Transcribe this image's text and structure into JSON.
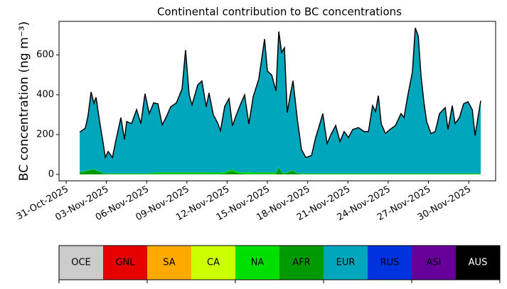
{
  "chart_data": {
    "type": "stacked_area",
    "title": "Continental contribution to BC concentrations",
    "ylabel": "BC concentration (ng m⁻³)",
    "x": [
      1.01,
      1.43,
      1.64,
      1.86,
      2.07,
      2.23,
      2.49,
      2.76,
      2.92,
      3.13,
      3.45,
      3.66,
      4.08,
      4.35,
      4.51,
      4.88,
      5.25,
      5.57,
      5.88,
      6.2,
      6.52,
      6.84,
      7.16,
      7.47,
      7.79,
      8.22,
      8.64,
      8.9,
      9.17,
      9.38,
      9.81,
      10.12,
      10.44,
      10.65,
      10.97,
      11.29,
      11.5,
      11.82,
      12.14,
      12.4,
      12.67,
      12.99,
      13.3,
      13.62,
      13.94,
      14.36,
      14.79,
      15.0,
      15.32,
      15.64,
      15.85,
      16.06,
      16.27,
      16.48,
      16.7,
      16.91,
      17.23,
      17.54,
      17.86,
      18.29,
      18.6,
      18.87,
      19.13,
      19.45,
      19.77,
      20.09,
      20.41,
      20.72,
      21.04,
      21.36,
      21.78,
      22.21,
      22.53,
      22.84,
      23.06,
      23.27,
      23.48,
      23.8,
      24.12,
      24.54,
      24.96,
      25.18,
      25.49,
      25.81,
      26.02,
      26.24,
      26.45,
      26.66,
      26.87,
      27.19,
      27.51,
      27.83,
      28.25,
      28.46,
      28.78,
      28.99,
      29.31,
      29.63,
      29.95,
      30.27,
      30.48,
      30.69,
      30.9
    ],
    "series": [
      {
        "name": "AFR",
        "color": "#009900",
        "values": [
          10,
          15,
          20,
          22,
          25,
          20,
          15,
          5,
          3,
          3,
          3,
          3,
          3,
          3,
          3,
          3,
          3,
          3,
          3,
          3,
          3,
          3,
          3,
          3,
          3,
          3,
          3,
          3,
          3,
          3,
          3,
          3,
          3,
          3,
          3,
          3,
          3,
          5,
          15,
          18,
          10,
          5,
          3,
          3,
          3,
          3,
          3,
          3,
          3,
          3,
          35,
          10,
          3,
          8,
          15,
          18,
          5,
          3,
          3,
          3,
          3,
          3,
          3,
          3,
          3,
          3,
          3,
          3,
          3,
          3,
          3,
          3,
          3,
          3,
          3,
          3,
          3,
          3,
          3,
          3,
          3,
          3,
          3,
          3,
          3,
          3,
          3,
          3,
          3,
          3,
          3,
          3,
          3,
          3,
          3,
          3,
          3,
          3,
          3,
          3,
          3,
          3,
          3
        ]
      },
      {
        "name": "NA",
        "color": "#00e000",
        "values": [
          2,
          2,
          2,
          2,
          2,
          2,
          2,
          2,
          2,
          2,
          2,
          2,
          2,
          2,
          2,
          2,
          2,
          2,
          2,
          2,
          6,
          6,
          6,
          6,
          6,
          6,
          6,
          6,
          6,
          6,
          6,
          6,
          6,
          6,
          6,
          6,
          6,
          6,
          6,
          6,
          6,
          6,
          6,
          10,
          6,
          6,
          6,
          6,
          6,
          6,
          2,
          2,
          2,
          2,
          2,
          2,
          2,
          2,
          2,
          2,
          2,
          2,
          2,
          2,
          2,
          2,
          2,
          2,
          2,
          2,
          2,
          2,
          2,
          2,
          2,
          2,
          2,
          2,
          2,
          2,
          2,
          2,
          2,
          2,
          2,
          2,
          2,
          2,
          2,
          2,
          2,
          2,
          2,
          2,
          2,
          2,
          2,
          2,
          2,
          2,
          2,
          2,
          2
        ]
      },
      {
        "name": "EUR",
        "color": "#00a6bc",
        "values": [
          200,
          215,
          275,
          390,
          330,
          365,
          250,
          150,
          80,
          110,
          80,
          150,
          280,
          170,
          260,
          250,
          320,
          250,
          400,
          300,
          350,
          345,
          240,
          280,
          330,
          350,
          420,
          615,
          390,
          340,
          440,
          460,
          330,
          400,
          290,
          250,
          210,
          330,
          360,
          220,
          280,
          340,
          390,
          240,
          380,
          470,
          670,
          510,
          490,
          410,
          680,
          600,
          630,
          300,
          380,
          450,
          270,
          120,
          80,
          90,
          180,
          240,
          300,
          150,
          200,
          240,
          160,
          210,
          180,
          220,
          230,
          210,
          210,
          340,
          310,
          390,
          250,
          200,
          220,
          240,
          300,
          280,
          400,
          510,
          730,
          690,
          490,
          360,
          260,
          200,
          210,
          300,
          330,
          220,
          340,
          250,
          280,
          350,
          360,
          320,
          190,
          280,
          365
        ]
      }
    ],
    "xlim": [
      -0.53,
      32.01
    ],
    "xticks": [
      {
        "value": 0,
        "label": "31-Oct-2025"
      },
      {
        "value": 3,
        "label": "03-Nov-2025"
      },
      {
        "value": 6,
        "label": "06-Nov-2025"
      },
      {
        "value": 9,
        "label": "09-Nov-2025"
      },
      {
        "value": 12,
        "label": "12-Nov-2025"
      },
      {
        "value": 15,
        "label": "15-Nov-2025"
      },
      {
        "value": 18,
        "label": "18-Nov-2025"
      },
      {
        "value": 21,
        "label": "21-Nov-2025"
      },
      {
        "value": 24,
        "label": "24-Nov-2025"
      },
      {
        "value": 27,
        "label": "27-Nov-2025"
      },
      {
        "value": 30,
        "label": "30-Nov-2025"
      }
    ],
    "ylim": [
      -32,
      768
    ],
    "yticks": [
      0,
      200,
      400,
      600
    ],
    "legend": [
      {
        "name": "OCE",
        "color": "#cccccc"
      },
      {
        "name": "GNL",
        "color": "#e60000"
      },
      {
        "name": "SA",
        "color": "#ffaa00"
      },
      {
        "name": "CA",
        "color": "#ccff00"
      },
      {
        "name": "NA",
        "color": "#00e000"
      },
      {
        "name": "AFR",
        "color": "#009900"
      },
      {
        "name": "EUR",
        "color": "#00a6bc"
      },
      {
        "name": "RUS",
        "color": "#0033dd"
      },
      {
        "name": "ASI",
        "color": "#660099"
      },
      {
        "name": "AUS",
        "color": "#000000"
      }
    ]
  }
}
